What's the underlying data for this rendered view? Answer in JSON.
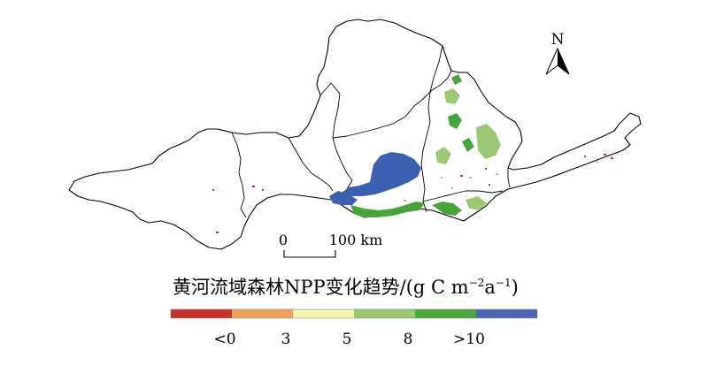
{
  "north_arrow": {
    "label": "N"
  },
  "scale_bar": {
    "start_label": "0",
    "end_label": "100 km"
  },
  "legend": {
    "title_prefix": "黄河流域森林NPP变化趋势/(g C m",
    "title_sup1": "−2",
    "title_mid": "a",
    "title_sup2": "−1",
    "title_suffix": ")",
    "classes": [
      {
        "color": "#c8302b"
      },
      {
        "color": "#f1a05a"
      },
      {
        "color": "#f7f3b0"
      },
      {
        "color": "#9cc873"
      },
      {
        "color": "#4aa83e"
      },
      {
        "color": "#4a66b4"
      }
    ],
    "tick_labels": [
      "<0",
      "3",
      "5",
      "8",
      ">10"
    ]
  },
  "colors": {
    "blue": "#3d5fb0",
    "green": "#45a43a",
    "light_green": "#9cc873",
    "red": "#c8302b",
    "orange": "#f1a05a"
  }
}
